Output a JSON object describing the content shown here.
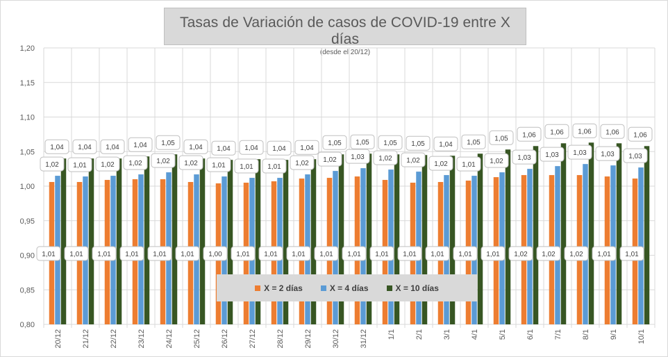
{
  "chart_data": {
    "type": "bar",
    "title": "Tasas de Variación de casos de COVID-19 entre X días",
    "subtitle": "(desde el 20/12)",
    "xlabel": "",
    "ylabel": "",
    "ylim": [
      0.8,
      1.2
    ],
    "yticks": [
      "0,80",
      "0,85",
      "0,90",
      "0,95",
      "1,00",
      "1,05",
      "1,10",
      "1,15",
      "1,20"
    ],
    "grid": true,
    "legend_position": "bottom-center",
    "categories": [
      "20/12",
      "21/12",
      "22/12",
      "23/12",
      "24/12",
      "25/12",
      "26/12",
      "27/12",
      "28/12",
      "29/12",
      "30/12",
      "31/12",
      "1/1",
      "2/1",
      "3/1",
      "4/1",
      "5/1",
      "6/1",
      "7/1",
      "8/1",
      "9/1",
      "10/1"
    ],
    "series": [
      {
        "name": "X = 2 días",
        "color": "#ed7d31",
        "values": [
          1.006,
          1.006,
          1.009,
          1.01,
          1.01,
          1.006,
          1.004,
          1.005,
          1.007,
          1.011,
          1.012,
          1.014,
          1.009,
          1.005,
          1.006,
          1.008,
          1.013,
          1.016,
          1.016,
          1.016,
          1.014,
          1.011
        ],
        "labels": [
          "1,01",
          "1,01",
          "1,01",
          "1,01",
          "1,01",
          "1,01",
          "1,00",
          "1,01",
          "1,01",
          "1,01",
          "1,01",
          "1,01",
          "1,01",
          "1,01",
          "1,01",
          "1,01",
          "1,01",
          "1,02",
          "1,02",
          "1,02",
          "1,01",
          "1,01"
        ]
      },
      {
        "name": "X = 4 días",
        "color": "#5b9bd5",
        "values": [
          1.015,
          1.014,
          1.015,
          1.017,
          1.02,
          1.017,
          1.014,
          1.012,
          1.012,
          1.017,
          1.022,
          1.026,
          1.024,
          1.021,
          1.016,
          1.015,
          1.02,
          1.025,
          1.029,
          1.032,
          1.03,
          1.027
        ],
        "labels": [
          "1,02",
          "1,01",
          "1,02",
          "1,02",
          "1,02",
          "1,02",
          "1,01",
          "1,01",
          "1,01",
          "1,02",
          "1,02",
          "1,03",
          "1,02",
          "1,02",
          "1,02",
          "1,01",
          "1,02",
          "1,03",
          "1,03",
          "1,03",
          "1,03",
          "1,03"
        ]
      },
      {
        "name": "X = 10 días",
        "color": "#375623",
        "values": [
          1.04,
          1.04,
          1.04,
          1.043,
          1.046,
          1.04,
          1.038,
          1.039,
          1.038,
          1.039,
          1.046,
          1.047,
          1.046,
          1.045,
          1.044,
          1.047,
          1.053,
          1.058,
          1.062,
          1.063,
          1.062,
          1.058
        ],
        "labels": [
          "1,04",
          "1,04",
          "1,04",
          "1,04",
          "1,05",
          "1,04",
          "1,04",
          "1,04",
          "1,04",
          "1,04",
          "1,05",
          "1,05",
          "1,05",
          "1,05",
          "1,04",
          "1,05",
          "1,05",
          "1,06",
          "1,06",
          "1,06",
          "1,06",
          "1,06"
        ]
      }
    ]
  }
}
